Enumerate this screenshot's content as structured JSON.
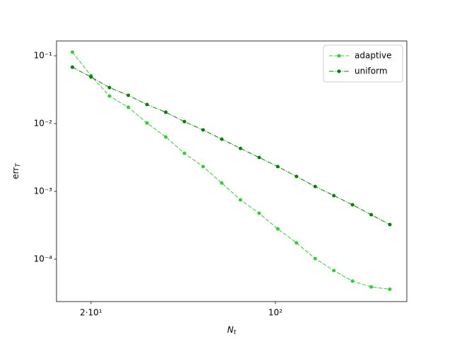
{
  "chart_data": {
    "type": "line",
    "xlabel": {
      "base": "N",
      "sub": "t"
    },
    "ylabel": {
      "base": "err",
      "sub": "T"
    },
    "log_x": true,
    "log_y": true,
    "x": [
      17.0,
      20.0,
      23.5,
      27.7,
      32.6,
      38.4,
      45.2,
      53.2,
      62.6,
      73.7,
      86.8,
      102.1,
      120.2,
      141.5,
      166.5,
      196.0,
      230.7,
      271.5
    ],
    "series": [
      {
        "name": "adaptive",
        "color": "#32cd32",
        "linestyle": "dashed",
        "values": [
          0.113,
          0.051,
          0.0255,
          0.0174,
          0.0102,
          0.00634,
          0.00365,
          0.00232,
          0.00133,
          0.00075,
          0.000475,
          0.00028,
          0.000174,
          0.000102,
          6.8e-05,
          4.75e-05,
          3.9e-05,
          3.6e-05
        ]
      },
      {
        "name": "uniform",
        "color": "#008000",
        "linestyle": "dashdot",
        "values": [
          0.068,
          0.0487,
          0.034,
          0.0261,
          0.0191,
          0.0147,
          0.0107,
          0.00805,
          0.0059,
          0.00431,
          0.00316,
          0.00232,
          0.00166,
          0.00118,
          0.000866,
          0.000634,
          0.000453,
          0.000324
        ]
      }
    ],
    "xlim": [
      14.8,
      314.8
    ],
    "ylim": [
      2.37e-05,
      0.1655
    ],
    "xticks": [
      {
        "value": 20,
        "label": "2·10¹"
      },
      {
        "value": 100,
        "label": "10²"
      }
    ],
    "yticks": [
      {
        "value": 0.1,
        "label": "10⁻¹"
      },
      {
        "value": 0.01,
        "label": "10⁻²"
      },
      {
        "value": 0.001,
        "label": "10⁻³"
      },
      {
        "value": 0.0001,
        "label": "10⁻⁴"
      }
    ],
    "legend": "upper right"
  }
}
